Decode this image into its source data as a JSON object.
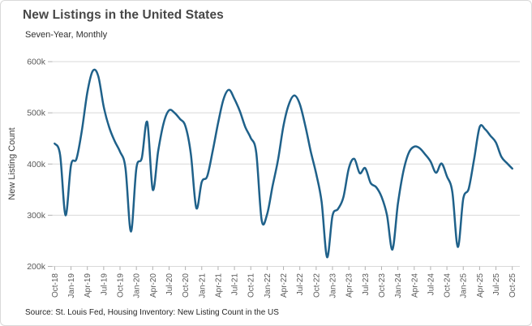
{
  "chart_data": {
    "type": "line",
    "title": "New Listings in the United States",
    "subtitle": "Seven-Year, Monthly",
    "ylabel": "New Listing Count",
    "source": "Source: St. Louis Fed, Housing Inventory: New Listing Count in the US",
    "series_name": "New Listing Count in the US",
    "legend": "none",
    "grid": "horizontal",
    "ylim": [
      200000,
      600000
    ],
    "yticks": [
      {
        "label": "200k",
        "value": 200000
      },
      {
        "label": "300k",
        "value": 300000
      },
      {
        "label": "400k",
        "value": 400000
      },
      {
        "label": "500k",
        "value": 500000
      },
      {
        "label": "600k",
        "value": 600000
      }
    ],
    "xtick_labels": [
      "Oct-18",
      "Jan-19",
      "Apr-19",
      "Jul-19",
      "Oct-19",
      "Jan-20",
      "Apr-20",
      "Jul-20",
      "Oct-20",
      "Jan-21",
      "Apr-21",
      "Jul-21",
      "Oct-21",
      "Jan-22",
      "Apr-22",
      "Jul-22",
      "Oct-22",
      "Jan-23",
      "Apr-23",
      "Jul-23",
      "Oct-23",
      "Jan-24",
      "Apr-24",
      "Jul-24",
      "Oct-24",
      "Jan-25",
      "Apr-25",
      "Jul-25",
      "Oct-25"
    ],
    "x": [
      "Oct-18",
      "Nov-18",
      "Dec-18",
      "Jan-19",
      "Feb-19",
      "Mar-19",
      "Apr-19",
      "May-19",
      "Jun-19",
      "Jul-19",
      "Aug-19",
      "Sep-19",
      "Oct-19",
      "Nov-19",
      "Dec-19",
      "Jan-20",
      "Feb-20",
      "Mar-20",
      "Apr-20",
      "May-20",
      "Jun-20",
      "Jul-20",
      "Aug-20",
      "Sep-20",
      "Oct-20",
      "Nov-20",
      "Dec-20",
      "Jan-21",
      "Feb-21",
      "Mar-21",
      "Apr-21",
      "May-21",
      "Jun-21",
      "Jul-21",
      "Aug-21",
      "Sep-21",
      "Oct-21",
      "Nov-21",
      "Dec-21",
      "Jan-22",
      "Feb-22",
      "Mar-22",
      "Apr-22",
      "May-22",
      "Jun-22",
      "Jul-22",
      "Aug-22",
      "Sep-22",
      "Oct-22",
      "Nov-22",
      "Dec-22",
      "Jan-23",
      "Feb-23",
      "Mar-23",
      "Apr-23",
      "May-23",
      "Jun-23",
      "Jul-23",
      "Aug-23",
      "Sep-23",
      "Oct-23",
      "Nov-23",
      "Dec-23",
      "Jan-24",
      "Feb-24",
      "Mar-24",
      "Apr-24",
      "May-24",
      "Jun-24",
      "Jul-24",
      "Aug-24",
      "Sep-24",
      "Oct-24",
      "Nov-24",
      "Dec-24",
      "Jan-25",
      "Feb-25",
      "Mar-25",
      "Apr-25",
      "May-25",
      "Jun-25",
      "Jul-25",
      "Aug-25",
      "Sep-25",
      "Oct-25"
    ],
    "values": [
      440000,
      418000,
      300000,
      398000,
      410000,
      466000,
      540000,
      582000,
      572000,
      512000,
      472000,
      445000,
      424000,
      392000,
      268000,
      392000,
      412000,
      482000,
      350000,
      425000,
      480000,
      505000,
      500000,
      488000,
      474000,
      420000,
      314000,
      365000,
      376000,
      425000,
      480000,
      527000,
      545000,
      527000,
      503000,
      472000,
      451000,
      422000,
      290000,
      302000,
      357000,
      408000,
      475000,
      517000,
      534000,
      517000,
      475000,
      425000,
      381000,
      326000,
      218000,
      299000,
      312000,
      335000,
      392000,
      410000,
      382000,
      392000,
      363000,
      355000,
      336000,
      300000,
      233000,
      322000,
      385000,
      422000,
      434000,
      431000,
      419000,
      405000,
      383000,
      401000,
      376000,
      345000,
      238000,
      332000,
      352000,
      410000,
      472000,
      468000,
      455000,
      442000,
      414000,
      402000,
      391000
    ],
    "line_color": "#1f618a"
  },
  "colors": {
    "grid": "#d9d9d9",
    "tick": "#b0b0b0",
    "axis_text": "#595959"
  }
}
